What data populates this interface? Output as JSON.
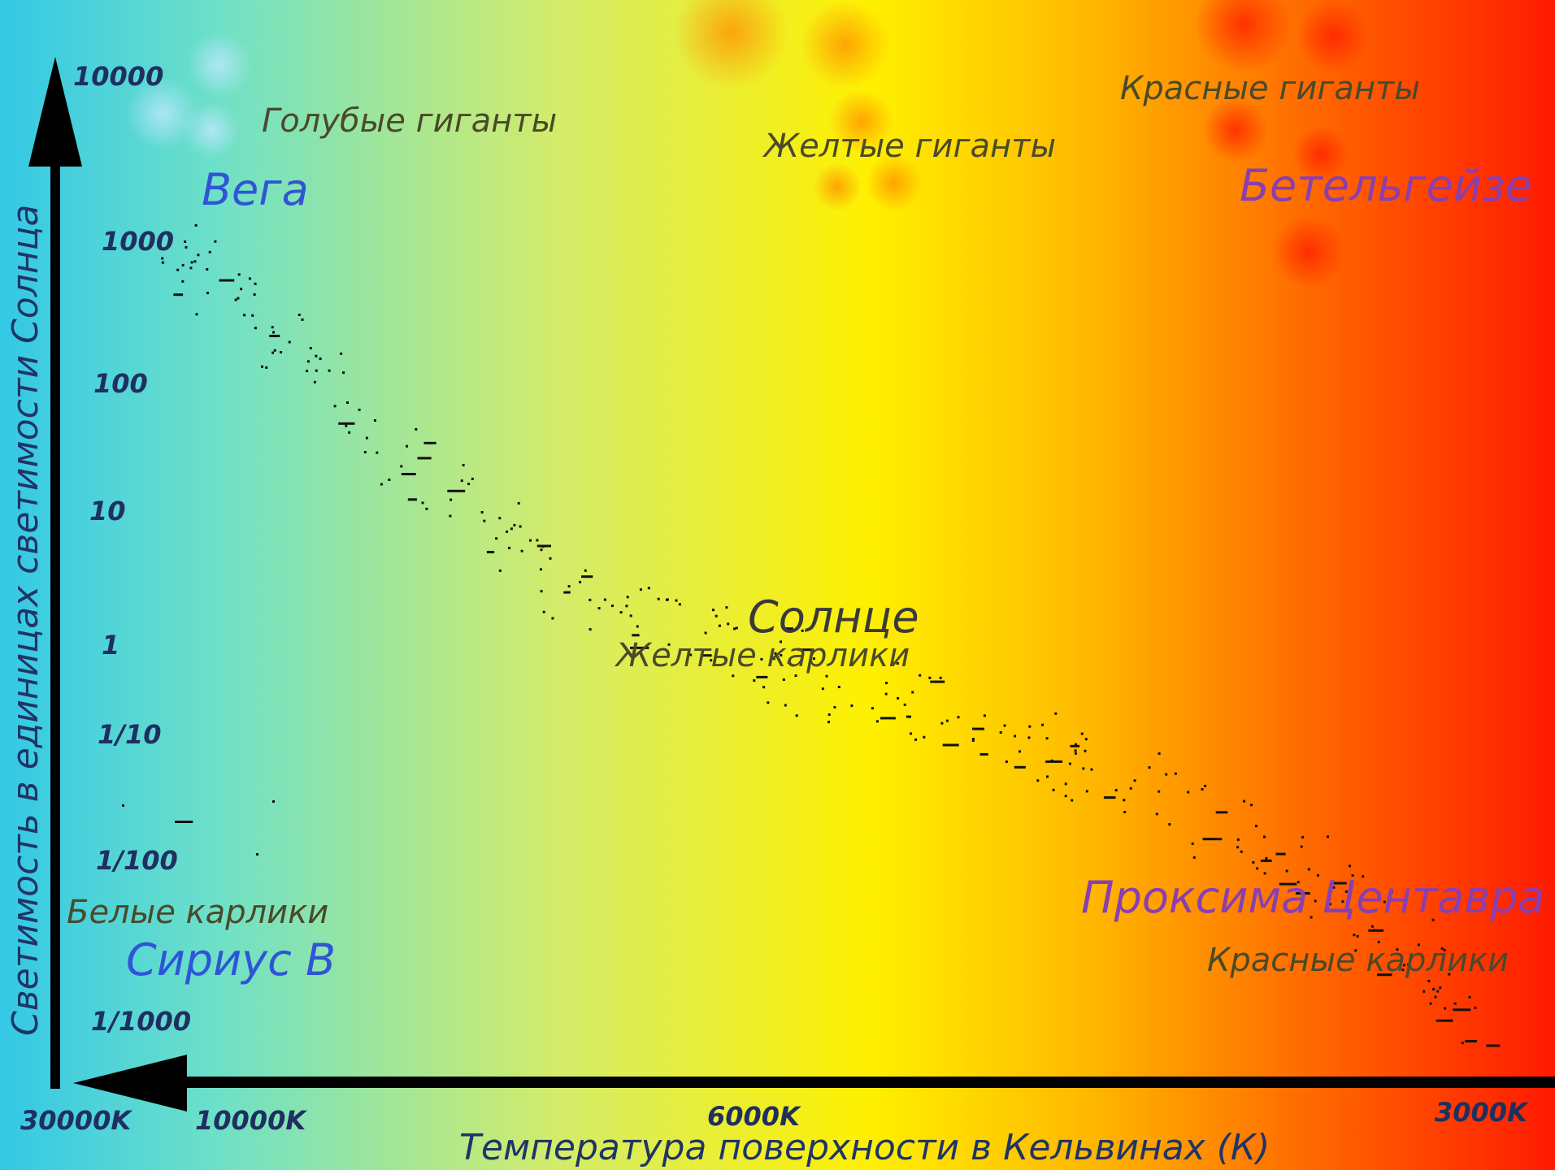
{
  "axes": {
    "y_title": "Светимость в единицах светимости Солнца",
    "x_title": "Температура поверхности в Кельвинах (К)"
  },
  "y_ticks": [
    {
      "label": "10000",
      "value": 10000
    },
    {
      "label": "1000",
      "value": 1000
    },
    {
      "label": "100",
      "value": 100
    },
    {
      "label": "10",
      "value": 10
    },
    {
      "label": "1",
      "value": 1
    },
    {
      "label": "1/10",
      "value": 0.1
    },
    {
      "label": "1/100",
      "value": 0.01
    },
    {
      "label": "1/1000",
      "value": 0.001
    }
  ],
  "x_ticks": [
    {
      "label": "30000K",
      "value": 30000
    },
    {
      "label": "10000K",
      "value": 10000
    },
    {
      "label": "6000K",
      "value": 6000
    },
    {
      "label": "3000K",
      "value": 3000
    }
  ],
  "regions": {
    "blue_giants": "Голубые гиганты",
    "yellow_giants": "Желтые гиганты",
    "red_giants": "Красные гиганты",
    "yellow_dwarfs": "Желтые карлики",
    "white_dwarfs": "Белые карлики",
    "red_dwarfs": "Красные карлики"
  },
  "stars": {
    "vega": "Вега",
    "betelgeuse": "Бетельгейзе",
    "sun": "Солнце",
    "sirius_b": "Сириус В",
    "proxima": "Проксима Центавра"
  },
  "colors": {
    "gradient": [
      "#33c8e6",
      "#6ee0c8",
      "#d4ec6a",
      "#fff000",
      "#ffb800",
      "#ff6a00",
      "#ff1a00"
    ],
    "axis": "#000000",
    "star_blue": "#2f55d6",
    "star_purple": "#8a3fb0"
  }
}
